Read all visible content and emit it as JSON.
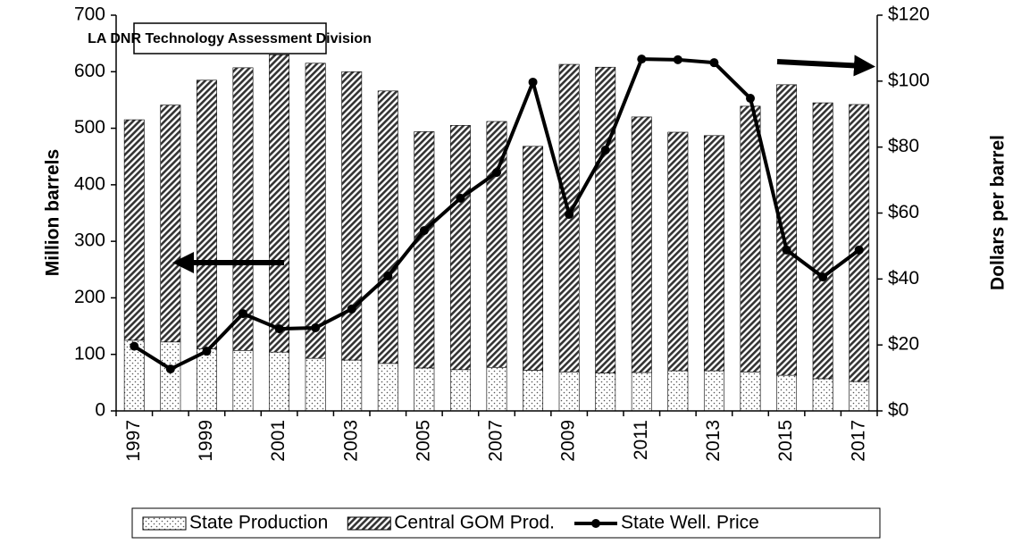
{
  "chart_data": {
    "type": "bar",
    "annotation": "LA DNR Technology Assessment Division",
    "ylabel": "Million barrels",
    "y2label": "Dollars per barrel",
    "categories": [
      "1997",
      null,
      "1999",
      null,
      "2001",
      null,
      "2003",
      null,
      "2005",
      null,
      "2007",
      null,
      "2009",
      null,
      "2011",
      null,
      "2013",
      null,
      "2015",
      null,
      "2017"
    ],
    "stacked": true,
    "series": [
      {
        "name": "State Production",
        "type": "bar",
        "color": "#000000",
        "values": [
          125,
          122,
          110,
          107,
          104,
          93,
          90,
          84,
          76,
          73,
          77,
          72,
          69,
          67,
          68,
          71,
          71,
          69,
          63,
          57,
          52
        ]
      },
      {
        "name": "Central GOM Prod.",
        "type": "bar",
        "color": "#000000",
        "values": [
          390,
          419,
          475,
          500,
          526,
          522,
          510,
          482,
          418,
          432,
          435,
          396,
          544,
          541,
          452,
          422,
          416,
          470,
          514,
          488,
          490
        ]
      },
      {
        "name": "State Well. Price",
        "type": "line",
        "axis": "y2",
        "color": "#000000",
        "values": [
          19.6,
          12.7,
          18.1,
          29.5,
          24.9,
          25.2,
          30.9,
          40.9,
          54.7,
          64.5,
          72.3,
          99.7,
          59.6,
          79.1,
          106.7,
          106.5,
          105.6,
          94.8,
          48.8,
          40.6,
          48.8
        ]
      }
    ],
    "ylim": [
      0,
      700
    ],
    "yticks": [
      0,
      100,
      200,
      300,
      400,
      500,
      600,
      700
    ],
    "y2lim": [
      0,
      120
    ],
    "y2ticks": [
      {
        "value": 0,
        "label": "$0"
      },
      {
        "value": 20,
        "label": "$20"
      },
      {
        "value": 40,
        "label": "$40"
      },
      {
        "value": 60,
        "label": "$60"
      },
      {
        "value": 80,
        "label": "$80"
      },
      {
        "value": 100,
        "label": "$100"
      },
      {
        "value": 120,
        "label": "$120"
      }
    ],
    "legend": "bottom"
  }
}
